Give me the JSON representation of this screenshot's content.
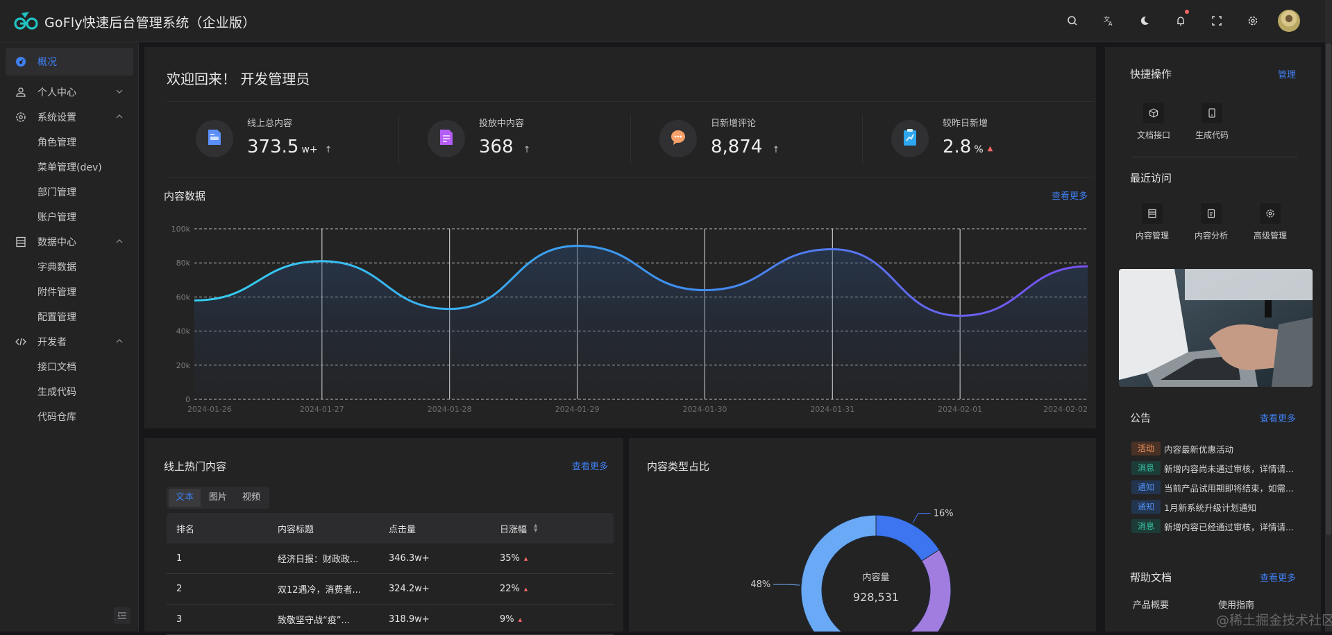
{
  "header": {
    "app_title": "GoFly快速后台管理系统（企业版）",
    "icons": [
      "search-icon",
      "translate-icon",
      "moon-icon",
      "bell-icon",
      "fullscreen-icon",
      "gear-icon"
    ],
    "notification_dot_color": "#f76964"
  },
  "sidebar": {
    "items": [
      {
        "label": "概况",
        "icon": "dashboard-icon",
        "active": true
      },
      {
        "label": "个人中心",
        "icon": "user-icon",
        "expanded": false
      },
      {
        "label": "系统设置",
        "icon": "gear-icon",
        "expanded": true
      },
      {
        "label": "角色管理",
        "sub": true
      },
      {
        "label": "菜单管理(dev)",
        "sub": true
      },
      {
        "label": "部门管理",
        "sub": true
      },
      {
        "label": "账户管理",
        "sub": true
      },
      {
        "label": "数据中心",
        "icon": "database-icon",
        "expanded": true
      },
      {
        "label": "字典数据",
        "sub": true
      },
      {
        "label": "附件管理",
        "sub": true
      },
      {
        "label": "配置管理",
        "sub": true
      },
      {
        "label": "开发者",
        "icon": "code-icon",
        "expanded": true
      },
      {
        "label": "接口文档",
        "sub": true
      },
      {
        "label": "生成代码",
        "sub": true
      },
      {
        "label": "代码仓库",
        "sub": true
      }
    ]
  },
  "welcome": {
    "text": "欢迎回来！  开发管理员"
  },
  "stats": [
    {
      "label": "线上总内容",
      "value": "373.5",
      "unit": "w+",
      "trend": "↑",
      "icon": "document-icon",
      "color": "#5b8ff9"
    },
    {
      "label": "投放中内容",
      "value": "368",
      "unit": "",
      "trend": "↑",
      "icon": "list-document-icon",
      "color": "#b45ef5"
    },
    {
      "label": "日新增评论",
      "value": "8,874",
      "unit": "",
      "trend": "↑",
      "icon": "comment-icon",
      "color": "#f7a06a"
    },
    {
      "label": "较昨日新增",
      "value": "2.8",
      "unit": "%",
      "trend": "▲",
      "icon": "chart-clipboard-icon",
      "color": "#2fa6f0"
    }
  ],
  "content_data": {
    "title": "内容数据",
    "more_label": "查看更多"
  },
  "chart_data": [
    {
      "type": "area",
      "title": "内容数据",
      "x": [
        "2024-01-26",
        "2024-01-27",
        "2024-01-28",
        "2024-01-29",
        "2024-01-30",
        "2024-01-31",
        "2024-02-01",
        "2024-02-02"
      ],
      "series": [
        {
          "name": "内容数据",
          "values": [
            58000,
            81000,
            53000,
            90000,
            64000,
            88000,
            49000,
            78000
          ]
        }
      ],
      "yticks": [
        "0",
        "20k",
        "40k",
        "60k",
        "80k",
        "100k"
      ],
      "ylim": [
        0,
        100000
      ],
      "grid": true,
      "line_gradient": [
        "#35d0f0",
        "#3f8ff0",
        "#7a4ff0"
      ]
    },
    {
      "type": "pie",
      "title": "内容类型占比",
      "center_label": "内容量",
      "center_value": "928,531",
      "slices": [
        {
          "value": 16,
          "label": "16%",
          "color": "#3d74f0"
        },
        {
          "value": 36,
          "label": "",
          "color": "#a17de0"
        },
        {
          "value": 48,
          "label": "48%",
          "color": "#6aa9f5"
        }
      ]
    }
  ],
  "hot_content": {
    "title": "线上热门内容",
    "more_label": "查看更多",
    "tabs": [
      {
        "label": "文本",
        "active": true
      },
      {
        "label": "图片",
        "active": false
      },
      {
        "label": "视频",
        "active": false
      }
    ],
    "columns": [
      "排名",
      "内容标题",
      "点击量",
      "日涨幅"
    ],
    "rows": [
      {
        "rank": "1",
        "title": "经济日报：财政政...",
        "clicks": "346.3w+",
        "change": "35%"
      },
      {
        "rank": "2",
        "title": "双12遇冷，消费者...",
        "clicks": "324.2w+",
        "change": "22%"
      },
      {
        "rank": "3",
        "title": "致敬坚守战“疫”...",
        "clicks": "318.9w+",
        "change": "9%"
      }
    ]
  },
  "donut": {
    "title": "内容类型占比"
  },
  "right_panel": {
    "quick_title": "快捷操作",
    "quick_manage": "管理",
    "quick_items": [
      {
        "label": "文档接口",
        "icon": "cube-icon"
      },
      {
        "label": "生成代码",
        "icon": "tablet-icon"
      }
    ],
    "recent_title": "最近访问",
    "recent_items": [
      {
        "label": "内容管理",
        "icon": "list-icon"
      },
      {
        "label": "内容分析",
        "icon": "file-icon"
      },
      {
        "label": "高级管理",
        "icon": "gear-icon"
      }
    ],
    "notice_title": "公告",
    "notice_more": "查看更多",
    "notices": [
      {
        "tag": "活动",
        "type": "act",
        "text": "内容最新优惠活动"
      },
      {
        "tag": "消息",
        "type": "msg",
        "text": "新增内容尚未通过审核，详情请..."
      },
      {
        "tag": "通知",
        "type": "ntf",
        "text": "当前产品试用期即将结束，如需..."
      },
      {
        "tag": "通知",
        "type": "ntf",
        "text": "1月新系统升级计划通知"
      },
      {
        "tag": "消息",
        "type": "msg",
        "text": "新增内容已经通过审核，详情请..."
      }
    ],
    "help_title": "帮助文档",
    "help_more": "查看更多",
    "help_items": [
      "产品概要",
      "使用指南"
    ]
  },
  "watermark": "@稀土掘金技术社区"
}
